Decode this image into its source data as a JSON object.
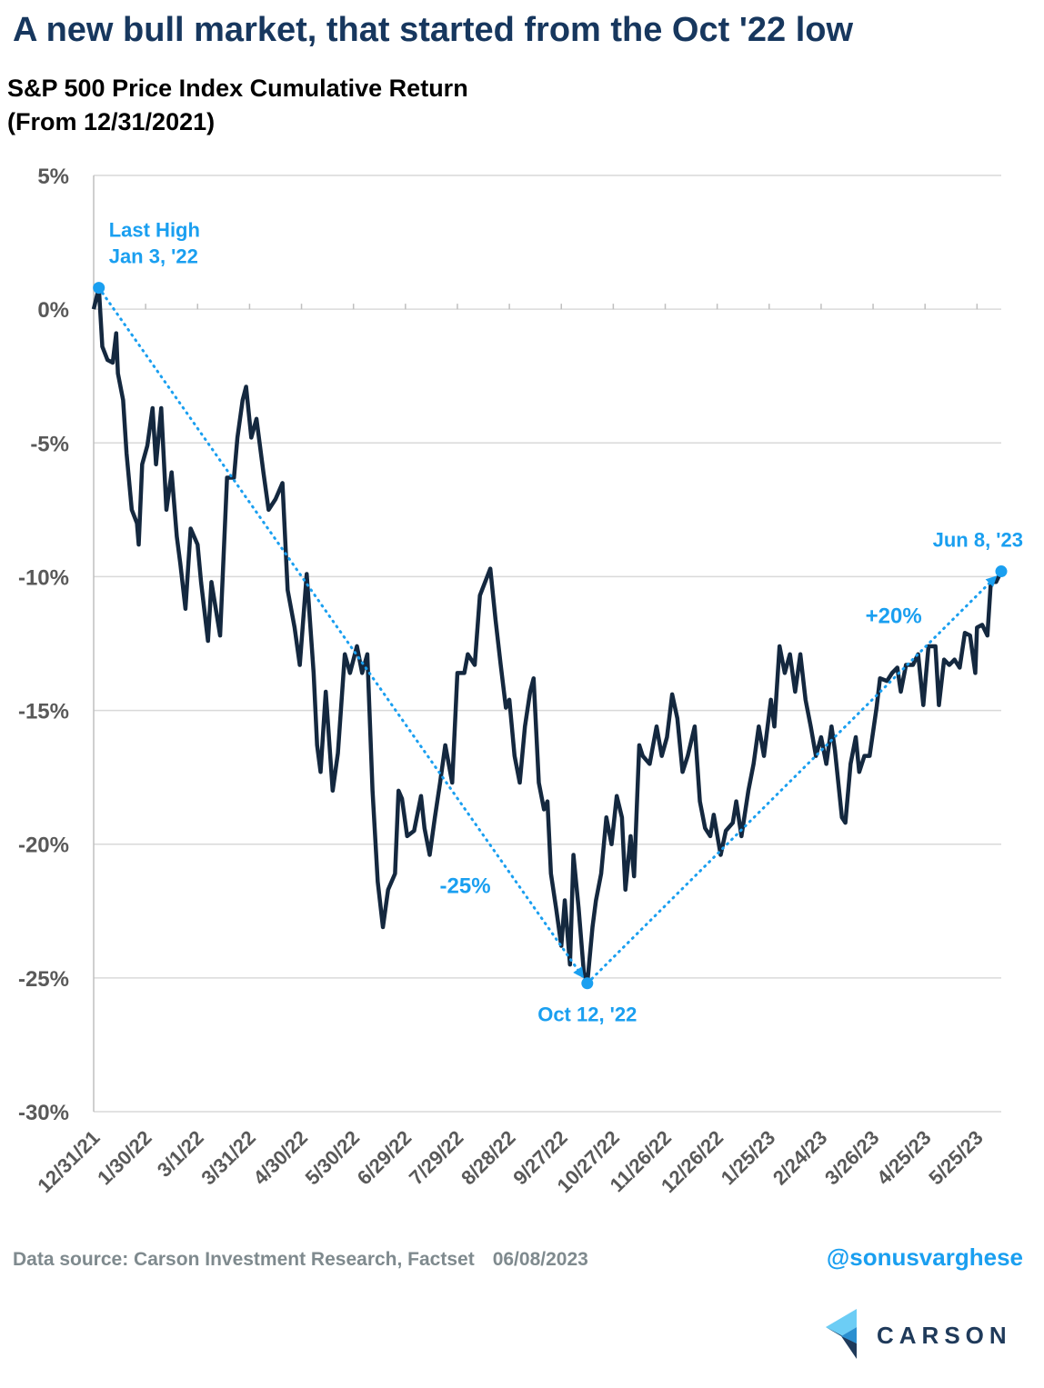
{
  "chart_data": {
    "type": "line",
    "title": "A new bull market, that started from the Oct '22 low",
    "subtitle": [
      "S&P 500 Price Index Cumulative Return",
      "(From 12/31/2021)"
    ],
    "x": [
      "12/31/21",
      "1/3/22",
      "1/5/22",
      "1/8/22",
      "1/11/22",
      "1/13/22",
      "1/14/22",
      "1/17/22",
      "1/19/22",
      "1/22/22",
      "1/25/22",
      "1/26/22",
      "1/28/22",
      "1/31/22",
      "2/3/22",
      "2/5/22",
      "2/8/22",
      "2/11/22",
      "2/14/22",
      "2/17/22",
      "2/19/22",
      "2/22/22",
      "2/25/22",
      "3/1/22",
      "3/3/22",
      "3/7/22",
      "3/9/22",
      "3/14/22",
      "3/18/22",
      "3/22/22",
      "3/24/22",
      "3/27/22",
      "3/29/22",
      "4/1/22",
      "4/4/22",
      "4/8/22",
      "4/11/22",
      "4/15/22",
      "4/19/22",
      "4/22/22",
      "4/26/22",
      "4/29/22",
      "5/3/22",
      "5/7/22",
      "5/9/22",
      "5/11/22",
      "5/14/22",
      "5/18/22",
      "5/21/22",
      "5/25/22",
      "5/28/22",
      "6/1/22",
      "6/4/22",
      "6/7/22",
      "6/10/22",
      "6/13/22",
      "6/16/22",
      "6/19/22",
      "6/23/22",
      "6/25/22",
      "6/27/22",
      "6/30/22",
      "7/4/22",
      "7/8/22",
      "7/10/22",
      "7/13/22",
      "7/16/22",
      "7/19/22",
      "7/22/22",
      "7/26/22",
      "7/29/22",
      "8/2/22",
      "8/4/22",
      "8/8/22",
      "8/11/22",
      "8/14/22",
      "8/17/22",
      "8/20/22",
      "8/23/22",
      "8/26/22",
      "8/28/22",
      "8/31/22",
      "9/3/22",
      "9/6/22",
      "9/9/22",
      "9/11/22",
      "9/14/22",
      "9/17/22",
      "9/19/22",
      "9/21/22",
      "9/24/22",
      "9/27/22",
      "9/29/22",
      "10/2/22",
      "10/4/22",
      "10/7/22",
      "10/10/22",
      "10/12/22",
      "10/15/22",
      "10/17/22",
      "10/20/22",
      "10/23/22",
      "10/26/22",
      "10/29/22",
      "11/1/22",
      "11/3/22",
      "11/6/22",
      "11/8/22",
      "11/11/22",
      "11/13/22",
      "11/17/22",
      "11/21/22",
      "11/24/22",
      "11/27/22",
      "11/30/22",
      "12/3/22",
      "12/6/22",
      "12/9/22",
      "12/13/22",
      "12/16/22",
      "12/19/22",
      "12/22/22",
      "12/24/22",
      "12/28/22",
      "12/31/22",
      "1/4/23",
      "1/6/23",
      "1/9/23",
      "1/13/23",
      "1/16/23",
      "1/19/23",
      "1/22/23",
      "1/26/23",
      "1/28/23",
      "1/31/23",
      "2/3/23",
      "2/6/23",
      "2/9/23",
      "2/12/23",
      "2/15/23",
      "2/18/23",
      "2/21/23",
      "2/24/23",
      "2/27/23",
      "3/2/23",
      "3/4/23",
      "3/8/23",
      "3/10/23",
      "3/13/23",
      "3/16/23",
      "3/18/23",
      "3/21/23",
      "3/24/23",
      "3/28/23",
      "3/30/23",
      "4/3/23",
      "4/6/23",
      "4/9/23",
      "4/11/23",
      "4/14/23",
      "4/18/23",
      "4/21/23",
      "4/24/23",
      "4/27/23",
      "5/1/23",
      "5/3/23",
      "5/6/23",
      "5/9/23",
      "5/12/23",
      "5/15/23",
      "5/18/23",
      "5/21/23",
      "5/24/23",
      "5/25/23",
      "5/28/23",
      "5/31/23",
      "6/2/23",
      "6/5/23",
      "6/8/23"
    ],
    "series": [
      {
        "name": "S&P 500 Price Index Cumulative Return",
        "color": "#14283f",
        "values": [
          0,
          0.8,
          -1.4,
          -1.9,
          -2.0,
          -0.9,
          -2.4,
          -3.4,
          -5.4,
          -7.5,
          -8.0,
          -8.8,
          -5.8,
          -5.1,
          -3.7,
          -5.8,
          -3.7,
          -7.5,
          -6.1,
          -8.5,
          -9.5,
          -11.2,
          -8.2,
          -8.8,
          -10.2,
          -12.4,
          -10.2,
          -12.2,
          -6.3,
          -6.3,
          -4.8,
          -3.4,
          -2.9,
          -4.8,
          -4.1,
          -6.1,
          -7.5,
          -7.1,
          -6.5,
          -10.5,
          -11.9,
          -13.3,
          -9.9,
          -13.6,
          -16.3,
          -17.3,
          -14.3,
          -18.0,
          -16.6,
          -12.9,
          -13.6,
          -12.6,
          -13.6,
          -12.9,
          -18.0,
          -21.4,
          -23.1,
          -21.7,
          -21.1,
          -18.0,
          -18.3,
          -19.7,
          -19.5,
          -18.2,
          -19.4,
          -20.4,
          -19.0,
          -17.7,
          -16.3,
          -17.7,
          -13.6,
          -13.6,
          -12.9,
          -13.3,
          -10.7,
          -10.2,
          -9.7,
          -11.6,
          -13.3,
          -14.9,
          -14.6,
          -16.7,
          -17.7,
          -15.6,
          -14.3,
          -13.8,
          -17.7,
          -18.7,
          -18.4,
          -21.1,
          -22.4,
          -23.8,
          -22.1,
          -24.5,
          -20.4,
          -22.4,
          -24.8,
          -25.2,
          -23.1,
          -22.1,
          -21.1,
          -19.0,
          -20.0,
          -18.2,
          -19.0,
          -21.7,
          -19.7,
          -21.2,
          -16.3,
          -16.7,
          -17.0,
          -15.6,
          -16.7,
          -16.0,
          -14.4,
          -15.3,
          -17.3,
          -16.7,
          -15.6,
          -18.4,
          -19.4,
          -19.7,
          -18.9,
          -20.4,
          -19.5,
          -19.2,
          -18.4,
          -19.7,
          -18.0,
          -17.0,
          -15.6,
          -16.7,
          -14.6,
          -15.6,
          -12.6,
          -13.6,
          -12.9,
          -14.3,
          -12.9,
          -14.6,
          -15.6,
          -16.7,
          -16.0,
          -17.0,
          -15.6,
          -16.5,
          -19.0,
          -19.2,
          -17.0,
          -16.0,
          -17.3,
          -16.7,
          -16.7,
          -14.9,
          -13.8,
          -13.9,
          -13.6,
          -13.4,
          -14.3,
          -13.3,
          -13.3,
          -12.9,
          -14.8,
          -12.6,
          -12.6,
          -14.8,
          -13.1,
          -13.3,
          -13.1,
          -13.4,
          -12.1,
          -12.2,
          -13.6,
          -11.9,
          -11.8,
          -12.2,
          -10.2,
          -10.2,
          -9.8
        ]
      }
    ],
    "ylim": [
      -30,
      5
    ],
    "yticks": [
      {
        "value": 5,
        "label": "5%"
      },
      {
        "value": 0,
        "label": "0%"
      },
      {
        "value": -5,
        "label": "-5%"
      },
      {
        "value": -10,
        "label": "-10%"
      },
      {
        "value": -15,
        "label": "-15%"
      },
      {
        "value": -20,
        "label": "-20%"
      },
      {
        "value": -25,
        "label": "-25%"
      },
      {
        "value": -30,
        "label": "-30%"
      }
    ],
    "xlim": [
      "12/31/21",
      "6/8/23"
    ],
    "xticks": [
      "12/31/21",
      "1/30/22",
      "3/1/22",
      "3/31/22",
      "4/30/22",
      "5/30/22",
      "6/29/22",
      "7/29/22",
      "8/28/22",
      "9/27/22",
      "10/27/22",
      "11/26/22",
      "12/26/22",
      "1/25/23",
      "2/24/23",
      "3/26/23",
      "4/25/23",
      "5/25/23"
    ],
    "grid": true,
    "highlight_color": "#1a9ff0",
    "highlights": [
      {
        "x": "1/3/22",
        "value": 0.8,
        "label": [
          "Last High",
          "Jan 3, '22"
        ]
      },
      {
        "x": "10/12/22",
        "value": -25.2,
        "label": [
          "Oct 12, '22"
        ]
      },
      {
        "x": "6/8/23",
        "value": -9.8,
        "label": [
          "Jun 8, '23"
        ]
      }
    ],
    "changes": [
      "-25%",
      "+20%"
    ],
    "source": "Data source: Carson Investment Research, Factset",
    "date": "06/08/2023",
    "handle": "@sonusvarghese",
    "brand": "CARSON"
  }
}
